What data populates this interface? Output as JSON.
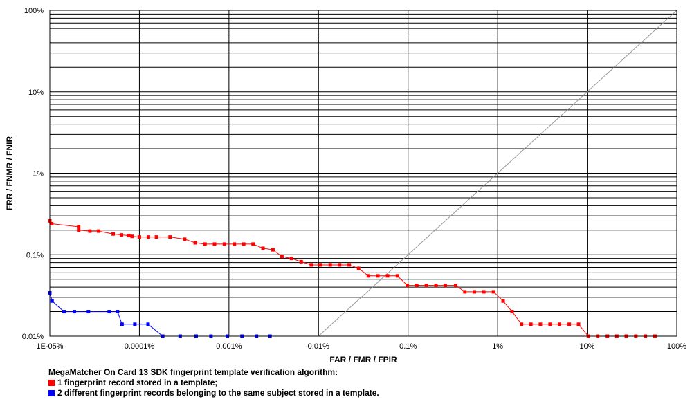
{
  "chart_data": {
    "type": "line",
    "x_scale": "log",
    "y_scale": "log",
    "xlabel": "FAR / FMR / FPIR",
    "ylabel": "FRR / FNMR / FNIR",
    "xlim": [
      1e-05,
      100
    ],
    "ylim": [
      0.01,
      100
    ],
    "x_ticks": [
      {
        "value": 1e-05,
        "label": "1E-05%"
      },
      {
        "value": 0.0001,
        "label": "0.0001%"
      },
      {
        "value": 0.001,
        "label": "0.001%"
      },
      {
        "value": 0.01,
        "label": "0.01%"
      },
      {
        "value": 0.1,
        "label": "0.1%"
      },
      {
        "value": 1,
        "label": "1%"
      },
      {
        "value": 10,
        "label": "10%"
      },
      {
        "value": 100,
        "label": "100%"
      }
    ],
    "y_ticks": [
      {
        "value": 100,
        "label": "100%"
      },
      {
        "value": 10,
        "label": "10%"
      },
      {
        "value": 1,
        "label": "1%"
      },
      {
        "value": 0.1,
        "label": "0.1%"
      },
      {
        "value": 0.01,
        "label": "0.01%"
      }
    ],
    "grid": true,
    "reference_line": {
      "type": "diagonal",
      "from": [
        0.01,
        0.01
      ],
      "to": [
        100,
        100
      ]
    },
    "caption_title": "MegaMatcher On Card 13 SDK fingerprint template verification algorithm:",
    "legend_position": "bottom-left",
    "series": [
      {
        "name": "1 fingerprint record stored in a template;",
        "color": "#ff0000",
        "points": [
          [
            1e-05,
            0.26
          ],
          [
            1.05e-05,
            0.24
          ],
          [
            2.1e-05,
            0.22
          ],
          [
            2.1e-05,
            0.2
          ],
          [
            2.8e-05,
            0.195
          ],
          [
            3.5e-05,
            0.195
          ],
          [
            5.1e-05,
            0.18
          ],
          [
            6.3e-05,
            0.175
          ],
          [
            7.6e-05,
            0.172
          ],
          [
            8.3e-05,
            0.168
          ],
          [
            0.0001,
            0.165
          ],
          [
            0.000126,
            0.165
          ],
          [
            0.000155,
            0.165
          ],
          [
            0.00022,
            0.165
          ],
          [
            0.00032,
            0.155
          ],
          [
            0.00042,
            0.14
          ],
          [
            0.00054,
            0.135
          ],
          [
            0.00069,
            0.135
          ],
          [
            0.00089,
            0.135
          ],
          [
            0.00115,
            0.135
          ],
          [
            0.00146,
            0.135
          ],
          [
            0.00186,
            0.135
          ],
          [
            0.0024,
            0.12
          ],
          [
            0.0031,
            0.115
          ],
          [
            0.0039,
            0.095
          ],
          [
            0.005,
            0.09
          ],
          [
            0.0064,
            0.082
          ],
          [
            0.0083,
            0.075
          ],
          [
            0.0105,
            0.075
          ],
          [
            0.0135,
            0.075
          ],
          [
            0.0172,
            0.075
          ],
          [
            0.022,
            0.075
          ],
          [
            0.028,
            0.068
          ],
          [
            0.036,
            0.055
          ],
          [
            0.046,
            0.055
          ],
          [
            0.059,
            0.055
          ],
          [
            0.076,
            0.055
          ],
          [
            0.098,
            0.042
          ],
          [
            0.125,
            0.042
          ],
          [
            0.16,
            0.042
          ],
          [
            0.205,
            0.042
          ],
          [
            0.26,
            0.042
          ],
          [
            0.34,
            0.042
          ],
          [
            0.43,
            0.035
          ],
          [
            0.55,
            0.035
          ],
          [
            0.7,
            0.035
          ],
          [
            0.9,
            0.035
          ],
          [
            1.15,
            0.027
          ],
          [
            1.45,
            0.02
          ],
          [
            1.85,
            0.014
          ],
          [
            2.35,
            0.014
          ],
          [
            3.0,
            0.014
          ],
          [
            3.85,
            0.014
          ],
          [
            4.9,
            0.014
          ],
          [
            6.3,
            0.014
          ],
          [
            8.0,
            0.014
          ],
          [
            10.3,
            0.01
          ],
          [
            13.1,
            0.01
          ],
          [
            16.8,
            0.01
          ],
          [
            21.4,
            0.01
          ],
          [
            27.3,
            0.01
          ],
          [
            34.9,
            0.01
          ],
          [
            44.6,
            0.01
          ],
          [
            57.0,
            0.01
          ]
        ]
      },
      {
        "name": "2 different fingerprint records belonging to the same subject stored in a template.",
        "color": "#0000ff",
        "points": [
          [
            1e-05,
            0.034
          ],
          [
            1.06e-05,
            0.027
          ],
          [
            1.44e-05,
            0.02
          ],
          [
            1.88e-05,
            0.02
          ],
          [
            2.7e-05,
            0.02
          ],
          [
            4.6e-05,
            0.02
          ],
          [
            5.7e-05,
            0.02
          ],
          [
            6.4e-05,
            0.014
          ],
          [
            8.9e-05,
            0.014
          ],
          [
            0.000125,
            0.014
          ],
          [
            0.000182,
            0.01
          ],
          [
            0.000285,
            0.01
          ],
          [
            0.00043,
            0.01
          ],
          [
            0.00063,
            0.01
          ],
          [
            0.00096,
            0.01
          ],
          [
            0.0014,
            0.01
          ],
          [
            0.00203,
            0.01
          ],
          [
            0.00287,
            0.01
          ]
        ]
      }
    ]
  }
}
